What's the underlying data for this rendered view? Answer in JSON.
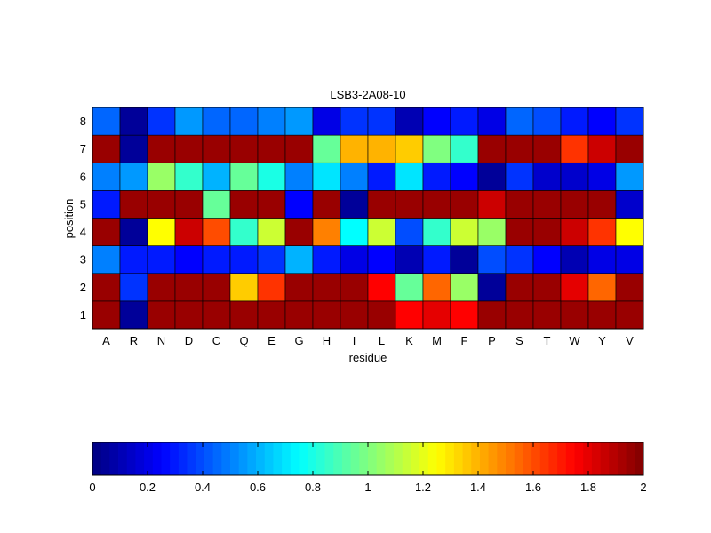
{
  "chart_data": [
    {
      "type": "heatmap",
      "title": "LSB3-2A08-10",
      "xlabel": "residue",
      "ylabel": "position",
      "x_categories": [
        "A",
        "R",
        "N",
        "D",
        "C",
        "Q",
        "E",
        "G",
        "H",
        "I",
        "L",
        "K",
        "M",
        "F",
        "P",
        "S",
        "T",
        "W",
        "Y",
        "V"
      ],
      "y_categories": [
        "1",
        "2",
        "3",
        "4",
        "5",
        "6",
        "7",
        "8"
      ],
      "colormap": "jet",
      "clim": [
        0,
        2
      ],
      "values_by_position": {
        "8": [
          0.45,
          0.05,
          0.35,
          0.55,
          0.45,
          0.45,
          0.5,
          0.55,
          0.2,
          0.35,
          0.35,
          0.1,
          0.25,
          0.3,
          0.2,
          0.45,
          0.4,
          0.3,
          0.25,
          0.35
        ],
        "7": [
          1.95,
          0.05,
          1.95,
          1.95,
          1.95,
          1.95,
          1.95,
          1.95,
          0.95,
          1.4,
          1.4,
          1.35,
          1.0,
          0.85,
          1.95,
          1.95,
          1.95,
          1.65,
          1.85,
          1.95
        ],
        "6": [
          0.5,
          0.55,
          1.05,
          0.85,
          0.6,
          0.95,
          0.8,
          0.5,
          0.7,
          0.5,
          0.3,
          0.7,
          0.3,
          0.25,
          0.05,
          0.35,
          0.15,
          0.15,
          0.2,
          0.55
        ],
        "5": [
          0.3,
          1.95,
          1.95,
          1.95,
          0.95,
          1.95,
          1.95,
          0.25,
          1.95,
          0.05,
          1.95,
          1.95,
          1.95,
          1.95,
          1.85,
          1.95,
          1.95,
          1.95,
          1.95,
          0.15
        ],
        "4": [
          1.95,
          0.05,
          1.25,
          1.85,
          1.6,
          0.85,
          1.15,
          1.95,
          1.5,
          0.75,
          1.15,
          0.4,
          0.85,
          1.15,
          1.05,
          1.95,
          1.95,
          1.85,
          1.65,
          1.25
        ],
        "3": [
          0.5,
          0.3,
          0.3,
          0.25,
          0.3,
          0.3,
          0.35,
          0.6,
          0.3,
          0.2,
          0.25,
          0.1,
          0.3,
          0.05,
          0.4,
          0.35,
          0.25,
          0.1,
          0.2,
          0.2
        ],
        "2": [
          1.95,
          0.35,
          1.95,
          1.95,
          1.95,
          1.35,
          1.65,
          1.95,
          1.95,
          1.95,
          1.75,
          0.95,
          1.55,
          1.05,
          0.05,
          1.95,
          1.95,
          1.8,
          1.55,
          1.95
        ],
        "1": [
          1.95,
          0.05,
          1.95,
          1.95,
          1.95,
          1.95,
          1.95,
          1.95,
          1.95,
          1.95,
          1.95,
          1.75,
          1.8,
          1.75,
          1.95,
          1.95,
          1.95,
          1.95,
          1.95,
          1.95
        ]
      }
    },
    {
      "type": "colorbar",
      "range": [
        0,
        2
      ],
      "tick_labels": [
        "0",
        "0.2",
        "0.4",
        "0.6",
        "0.8",
        "1",
        "1.2",
        "1.4",
        "1.6",
        "1.8",
        "2"
      ]
    }
  ]
}
